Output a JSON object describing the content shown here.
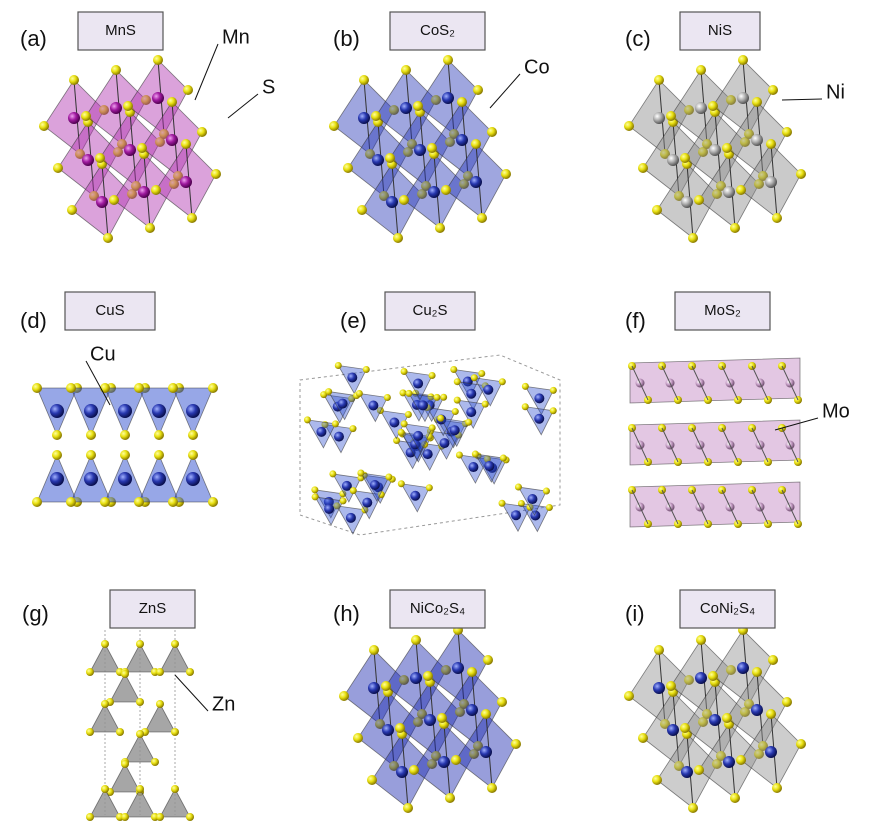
{
  "panels": [
    {
      "letter": "(a)",
      "formula": "MnS",
      "atoms": [
        "Mn",
        "S"
      ]
    },
    {
      "letter": "(b)",
      "formula": "CoS₂",
      "atoms": [
        "Co"
      ]
    },
    {
      "letter": "(c)",
      "formula": "NiS",
      "atoms": [
        "Ni"
      ]
    },
    {
      "letter": "(d)",
      "formula": "CuS",
      "atoms": [
        "Cu"
      ]
    },
    {
      "letter": "(e)",
      "formula": "Cu₂S",
      "atoms": []
    },
    {
      "letter": "(f)",
      "formula": "MoS₂",
      "atoms": [
        "Mo"
      ]
    },
    {
      "letter": "(g)",
      "formula": "ZnS",
      "atoms": [
        "Zn"
      ]
    },
    {
      "letter": "(h)",
      "formula": "NiCo₂S₄",
      "atoms": []
    },
    {
      "letter": "(i)",
      "formula": "CoNi₂S₄",
      "atoms": []
    }
  ]
}
